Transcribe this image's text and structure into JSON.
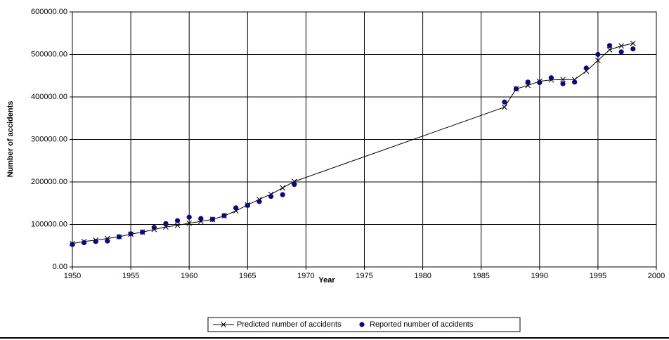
{
  "chart_data": {
    "type": "line",
    "x_label": "Year",
    "y_label": "Number of accidents",
    "x": [
      1950,
      1951,
      1952,
      1953,
      1954,
      1955,
      1956,
      1957,
      1958,
      1959,
      1960,
      1961,
      1962,
      1963,
      1964,
      1965,
      1966,
      1967,
      1968,
      1969,
      1987,
      1988,
      1989,
      1990,
      1991,
      1992,
      1993,
      1994,
      1995,
      1996,
      1997,
      1998
    ],
    "series": [
      {
        "name": "Predicted number of accidents",
        "color": "#000000",
        "marker": "x",
        "values": [
          55000,
          60000,
          63000,
          67000,
          71000,
          77000,
          82000,
          88000,
          94000,
          98000,
          103000,
          107000,
          112000,
          120000,
          132000,
          146000,
          159000,
          171000,
          186000,
          201000,
          376000,
          419000,
          427000,
          437000,
          440000,
          441000,
          441000,
          461000,
          486000,
          511000,
          520000,
          526000
        ]
      },
      {
        "name": "Reported number of accidents",
        "color": "#0a0a80",
        "marker": "circle",
        "values": [
          53000,
          57000,
          60000,
          61000,
          71000,
          78000,
          82000,
          93000,
          102000,
          109000,
          117000,
          114000,
          112000,
          121000,
          139000,
          145000,
          154000,
          166000,
          170000,
          194000,
          388000,
          419000,
          435000,
          434000,
          445000,
          431000,
          435000,
          468000,
          500000,
          521000,
          506000,
          513000
        ]
      }
    ],
    "xlim": [
      1950,
      2000
    ],
    "xticks": [
      1950,
      1955,
      1960,
      1965,
      1970,
      1975,
      1980,
      1985,
      1990,
      1995,
      2000
    ],
    "ylim": [
      0,
      600000
    ],
    "yticks": [
      {
        "value": 0,
        "label": "0.00"
      },
      {
        "value": 100000,
        "label": "100000.00"
      },
      {
        "value": 200000,
        "label": "200000.00"
      },
      {
        "value": 300000,
        "label": "300000.00"
      },
      {
        "value": 400000,
        "label": "400000.00"
      },
      {
        "value": 500000,
        "label": "500000.00"
      },
      {
        "value": 600000,
        "label": "600000.00"
      }
    ],
    "grid": true,
    "legend": "bottom"
  }
}
